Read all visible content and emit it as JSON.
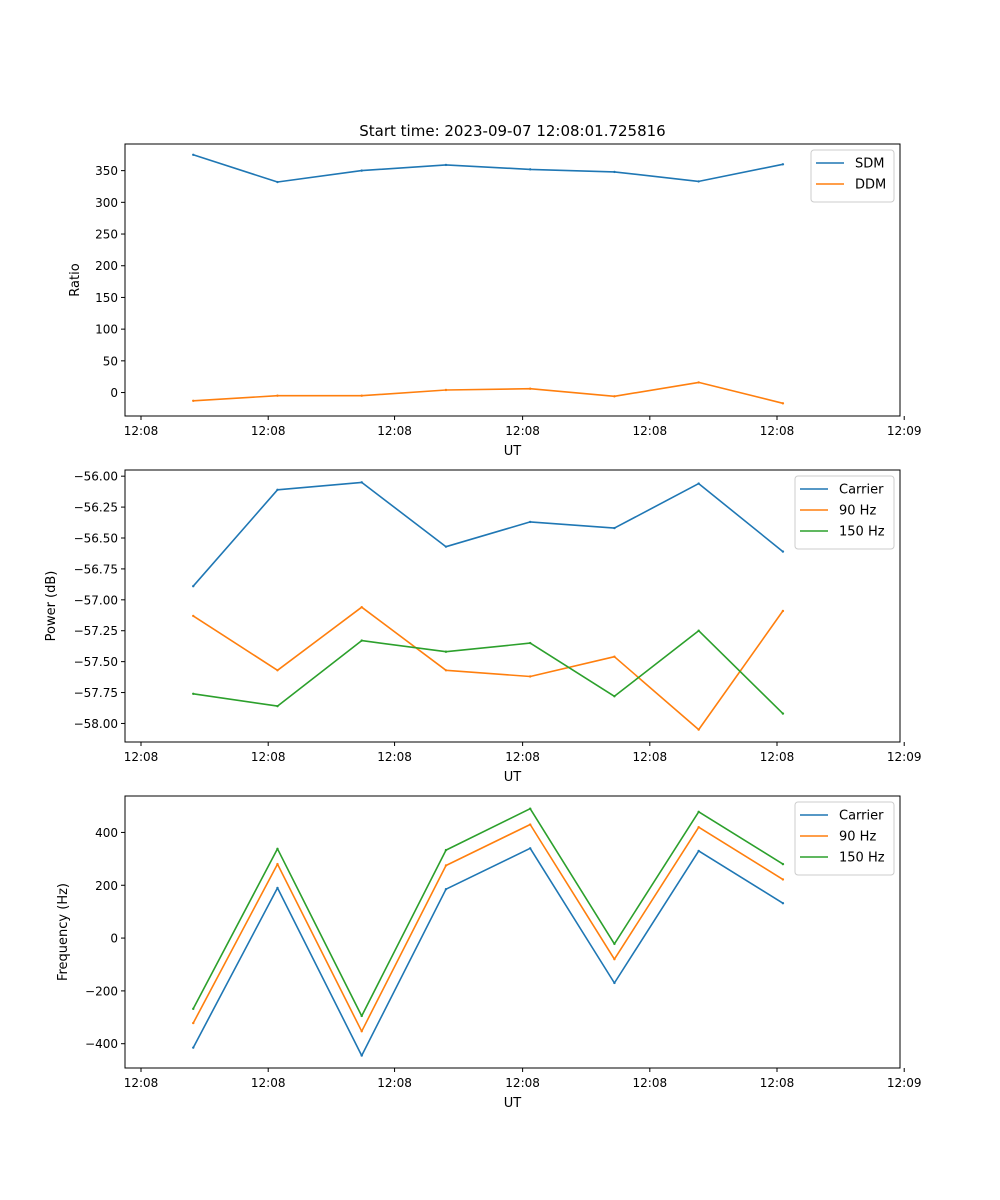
{
  "figure": {
    "title": "Start time: 2023-09-07 12:08:01.725816"
  },
  "colors": {
    "blue": "#1f77b4",
    "orange": "#ff7f0e",
    "green": "#2ca02c"
  },
  "chart_data": [
    {
      "type": "line",
      "id": "ratio",
      "title": "Start time: 2023-09-07 12:08:01.725816",
      "xlabel": "UT",
      "ylabel": "Ratio",
      "x": [
        1,
        2,
        3,
        4,
        5,
        6,
        7,
        8
      ],
      "xlim": [
        0.19,
        9.39
      ],
      "xticks": [
        0.38,
        1.89,
        3.39,
        4.91,
        6.42,
        7.93,
        9.44
      ],
      "xtick_labels": [
        "12:08",
        "12:08",
        "12:08",
        "12:08",
        "12:08",
        "12:08",
        "12:09"
      ],
      "ylim": [
        -37,
        392
      ],
      "yticks": [
        0,
        50,
        100,
        150,
        200,
        250,
        300,
        350
      ],
      "ytick_labels": [
        "0",
        "50",
        "100",
        "150",
        "200",
        "250",
        "300",
        "350"
      ],
      "legend": "top-right",
      "series": [
        {
          "name": "SDM",
          "color": "#1f77b4",
          "values": [
            375,
            332,
            350,
            359,
            352,
            348,
            333,
            360
          ]
        },
        {
          "name": "DDM",
          "color": "#ff7f0e",
          "values": [
            -13,
            -5,
            -5,
            4,
            6,
            -6,
            16,
            -17
          ]
        }
      ]
    },
    {
      "type": "line",
      "id": "power",
      "xlabel": "UT",
      "ylabel": "Power (dB)",
      "x": [
        1,
        2,
        3,
        4,
        5,
        6,
        7,
        8
      ],
      "xlim": [
        0.19,
        9.39
      ],
      "xticks": [
        0.38,
        1.89,
        3.39,
        4.91,
        6.42,
        7.93,
        9.44
      ],
      "xtick_labels": [
        "12:08",
        "12:08",
        "12:08",
        "12:08",
        "12:08",
        "12:08",
        "12:09"
      ],
      "ylim": [
        -58.15,
        -55.95
      ],
      "yticks": [
        -56.0,
        -56.25,
        -56.5,
        -56.75,
        -57.0,
        -57.25,
        -57.5,
        -57.75,
        -58.0
      ],
      "ytick_labels": [
        "−56.00",
        "−56.25",
        "−56.50",
        "−56.75",
        "−57.00",
        "−57.25",
        "−57.50",
        "−57.75",
        "−58.00"
      ],
      "legend": "top-right",
      "series": [
        {
          "name": "Carrier",
          "color": "#1f77b4",
          "values": [
            -56.89,
            -56.11,
            -56.05,
            -56.57,
            -56.37,
            -56.42,
            -56.06,
            -56.61
          ]
        },
        {
          "name": "90 Hz",
          "color": "#ff7f0e",
          "values": [
            -57.13,
            -57.57,
            -57.06,
            -57.57,
            -57.62,
            -57.46,
            -58.05,
            -57.09
          ]
        },
        {
          "name": "150 Hz",
          "color": "#2ca02c",
          "values": [
            -57.76,
            -57.86,
            -57.33,
            -57.42,
            -57.35,
            -57.78,
            -57.25,
            -57.92
          ]
        }
      ]
    },
    {
      "type": "line",
      "id": "frequency",
      "xlabel": "UT",
      "ylabel": "Frequency (Hz)",
      "x": [
        1,
        2,
        3,
        4,
        5,
        6,
        7,
        8
      ],
      "xlim": [
        0.19,
        9.39
      ],
      "xticks": [
        0.38,
        1.89,
        3.39,
        4.91,
        6.42,
        7.93,
        9.44
      ],
      "xtick_labels": [
        "12:08",
        "12:08",
        "12:08",
        "12:08",
        "12:08",
        "12:08",
        "12:09"
      ],
      "ylim": [
        -492,
        538
      ],
      "yticks": [
        -400,
        -200,
        0,
        200,
        400
      ],
      "ytick_labels": [
        "−400",
        "−200",
        "0",
        "200",
        "400"
      ],
      "legend": "top-right",
      "series": [
        {
          "name": "Carrier",
          "color": "#1f77b4",
          "values": [
            -415,
            190,
            -445,
            185,
            340,
            -170,
            330,
            132
          ]
        },
        {
          "name": "90 Hz",
          "color": "#ff7f0e",
          "values": [
            -322,
            280,
            -353,
            275,
            430,
            -80,
            420,
            222
          ]
        },
        {
          "name": "150 Hz",
          "color": "#2ca02c",
          "values": [
            -268,
            338,
            -295,
            333,
            490,
            -22,
            478,
            280
          ]
        }
      ]
    }
  ]
}
